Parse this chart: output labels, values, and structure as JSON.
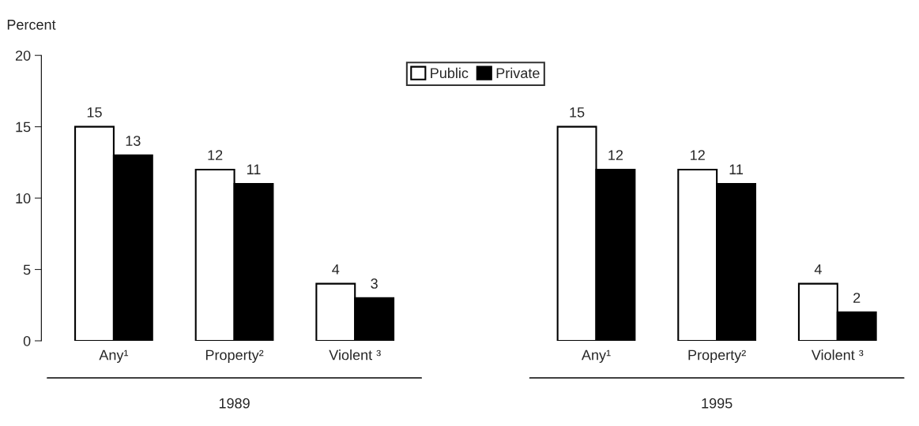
{
  "chart_data": {
    "type": "bar",
    "ylabel": "Percent",
    "categories": [
      "Any¹",
      "Property²",
      "Violent ³",
      null,
      "Any¹",
      "Property²",
      "Violent ³"
    ],
    "series": [
      {
        "name": "Public",
        "color": "#ffffff",
        "values": [
          15,
          12,
          4,
          null,
          15,
          12,
          4
        ]
      },
      {
        "name": "Private",
        "color": "#000000",
        "values": [
          13,
          11,
          3,
          null,
          12,
          11,
          2
        ]
      }
    ],
    "ylim": [
      0,
      20
    ],
    "yticks": [
      0,
      5,
      10,
      15,
      20
    ],
    "grid": false,
    "legend": "top",
    "data_labels": true,
    "annotations": [
      "1989",
      "1995"
    ]
  }
}
